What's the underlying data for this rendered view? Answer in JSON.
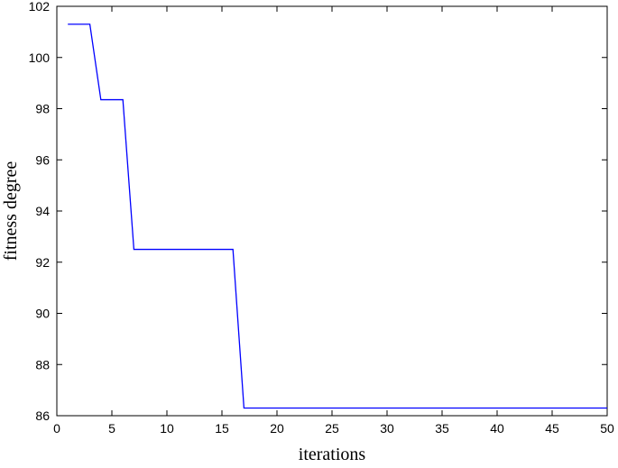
{
  "chart_data": {
    "type": "line",
    "x_label": "iterations",
    "y_label": "fitness degree",
    "x": [
      1,
      2,
      3,
      4,
      5,
      6,
      7,
      8,
      9,
      10,
      11,
      12,
      13,
      14,
      15,
      16,
      17,
      18,
      19,
      20,
      21,
      22,
      23,
      24,
      25,
      26,
      27,
      28,
      29,
      30,
      31,
      32,
      33,
      34,
      35,
      36,
      37,
      38,
      39,
      40,
      41,
      42,
      43,
      44,
      45,
      46,
      47,
      48,
      49,
      50
    ],
    "series": [
      {
        "color": "#0000ff",
        "values": [
          101.3,
          101.3,
          101.3,
          98.35,
          98.35,
          98.35,
          92.5,
          92.5,
          92.5,
          92.5,
          92.5,
          92.5,
          92.5,
          92.5,
          92.5,
          92.5,
          86.3,
          86.3,
          86.3,
          86.3,
          86.3,
          86.3,
          86.3,
          86.3,
          86.3,
          86.3,
          86.3,
          86.3,
          86.3,
          86.3,
          86.3,
          86.3,
          86.3,
          86.3,
          86.3,
          86.3,
          86.3,
          86.3,
          86.3,
          86.3,
          86.3,
          86.3,
          86.3,
          86.3,
          86.3,
          86.3,
          86.3,
          86.3,
          86.3,
          86.3
        ]
      }
    ],
    "xlim": [
      0,
      50
    ],
    "xticks": [
      0,
      5,
      10,
      15,
      20,
      25,
      30,
      35,
      40,
      45,
      50
    ],
    "ylim": [
      86,
      102
    ],
    "yticks": [
      86,
      88,
      90,
      92,
      94,
      96,
      98,
      100,
      102
    ],
    "grid": false
  }
}
